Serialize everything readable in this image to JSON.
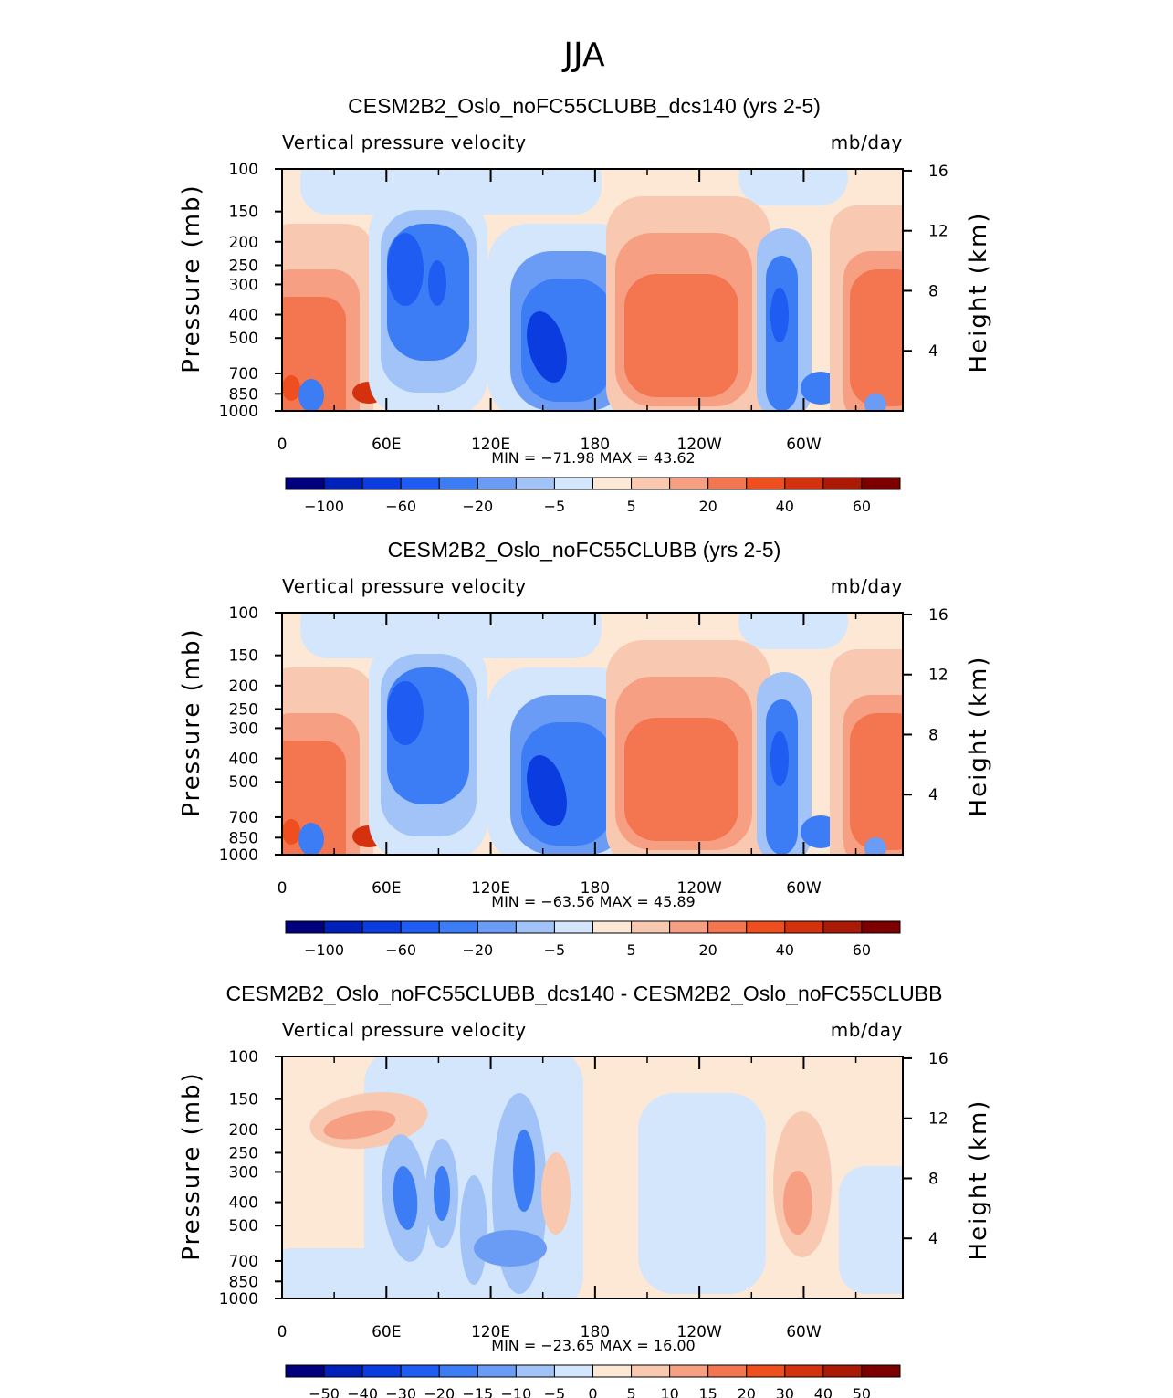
{
  "figure": {
    "season": "JJA",
    "lon_ticks": [
      "0",
      "60E",
      "120E",
      "180",
      "120W",
      "60W"
    ],
    "p_ticks": [
      "100",
      "150",
      "200",
      "250",
      "300",
      "400",
      "500",
      "700",
      "850",
      "1000"
    ],
    "h_ticks": [
      "16",
      "12",
      "8",
      "4"
    ],
    "colors": {
      "abs": [
        "#00007d",
        "#0021b9",
        "#0a3ce0",
        "#1f5cf2",
        "#3c7cf5",
        "#6a9cf6",
        "#a1c3f8",
        "#d4e6fb",
        "#fde8d6",
        "#f9c8b1",
        "#f69f83",
        "#f37651",
        "#ef4f1e",
        "#d4310f",
        "#aa1a06",
        "#7d0000"
      ],
      "diff": [
        "#00007d",
        "#0021b9",
        "#0a3ce0",
        "#1f5cf2",
        "#3c7cf5",
        "#6a9cf6",
        "#a1c3f8",
        "#d4e6fb",
        "#fde8d6",
        "#f9c8b1",
        "#f69f83",
        "#f37651",
        "#ef4f1e",
        "#d4310f",
        "#aa1a06",
        "#7d0000"
      ]
    }
  },
  "chart_data": [
    {
      "type": "heatmap",
      "title": "CESM2B2_Oslo_noFC55CLUBB_dcs140 (yrs 2-5)",
      "variable": "Vertical pressure velocity",
      "units": "mb/day",
      "xlabel": "",
      "ylabel": "Pressure (mb)",
      "ylabel_right": "Height (km)",
      "xlim": [
        0,
        357
      ],
      "ylim": [
        1000,
        100
      ],
      "min_max": "MIN =  −71.98   MAX =   43.62",
      "colorbar_labels": [
        "−100",
        "−60",
        "−20",
        "−5",
        "5",
        "20",
        "40",
        "60"
      ],
      "colorbar_levels": [
        -100,
        -80,
        -60,
        -40,
        -20,
        -10,
        -5,
        0,
        5,
        10,
        20,
        30,
        40,
        50,
        60
      ],
      "features": [
        {
          "lon": 10,
          "p": 400,
          "value": 25
        },
        {
          "lon": 50,
          "p": 870,
          "value": 40
        },
        {
          "lon": 75,
          "p": 280,
          "value": -45
        },
        {
          "lon": 90,
          "p": 320,
          "value": -40
        },
        {
          "lon": 150,
          "p": 550,
          "value": -70
        },
        {
          "lon": 240,
          "p": 400,
          "value": 25
        },
        {
          "lon": 285,
          "p": 350,
          "value": -45
        },
        {
          "lon": 345,
          "p": 400,
          "value": 25
        }
      ]
    },
    {
      "type": "heatmap",
      "title": "CESM2B2_Oslo_noFC55CLUBB (yrs 2-5)",
      "variable": "Vertical pressure velocity",
      "units": "mb/day",
      "xlabel": "",
      "ylabel": "Pressure (mb)",
      "ylabel_right": "Height (km)",
      "xlim": [
        0,
        357
      ],
      "ylim": [
        1000,
        100
      ],
      "min_max": "MIN =  −63.56   MAX =   45.89",
      "colorbar_labels": [
        "−100",
        "−60",
        "−20",
        "−5",
        "5",
        "20",
        "40",
        "60"
      ],
      "colorbar_levels": [
        -100,
        -80,
        -60,
        -40,
        -20,
        -10,
        -5,
        0,
        5,
        10,
        20,
        30,
        40,
        50,
        60
      ],
      "features": [
        {
          "lon": 10,
          "p": 450,
          "value": 25
        },
        {
          "lon": 50,
          "p": 870,
          "value": 40
        },
        {
          "lon": 75,
          "p": 250,
          "value": -40
        },
        {
          "lon": 150,
          "p": 600,
          "value": -60
        },
        {
          "lon": 240,
          "p": 400,
          "value": 25
        },
        {
          "lon": 285,
          "p": 350,
          "value": -40
        },
        {
          "lon": 345,
          "p": 450,
          "value": 25
        }
      ]
    },
    {
      "type": "heatmap",
      "title": "CESM2B2_Oslo_noFC55CLUBB_dcs140 - CESM2B2_Oslo_noFC55CLUBB",
      "variable": "Vertical pressure velocity",
      "units": "mb/day",
      "xlabel": "",
      "ylabel": "Pressure (mb)",
      "ylabel_right": "Height (km)",
      "xlim": [
        0,
        357
      ],
      "ylim": [
        1000,
        100
      ],
      "min_max": "MIN =  −23.65   MAX =   16.00",
      "colorbar_labels": [
        "−50",
        "−40",
        "−30",
        "−20",
        "−15",
        "−10",
        "−5",
        "0",
        "5",
        "10",
        "15",
        "20",
        "30",
        "40",
        "50"
      ],
      "colorbar_levels": [
        -50,
        -40,
        -30,
        -20,
        -15,
        -10,
        -5,
        0,
        5,
        10,
        15,
        20,
        30,
        40,
        50
      ],
      "features": [
        {
          "lon": 60,
          "p": 150,
          "value": 12
        },
        {
          "lon": 70,
          "p": 400,
          "value": -20
        },
        {
          "lon": 95,
          "p": 380,
          "value": -15
        },
        {
          "lon": 140,
          "p": 350,
          "value": -18
        },
        {
          "lon": 155,
          "p": 400,
          "value": 8
        },
        {
          "lon": 290,
          "p": 420,
          "value": 14
        }
      ]
    }
  ]
}
